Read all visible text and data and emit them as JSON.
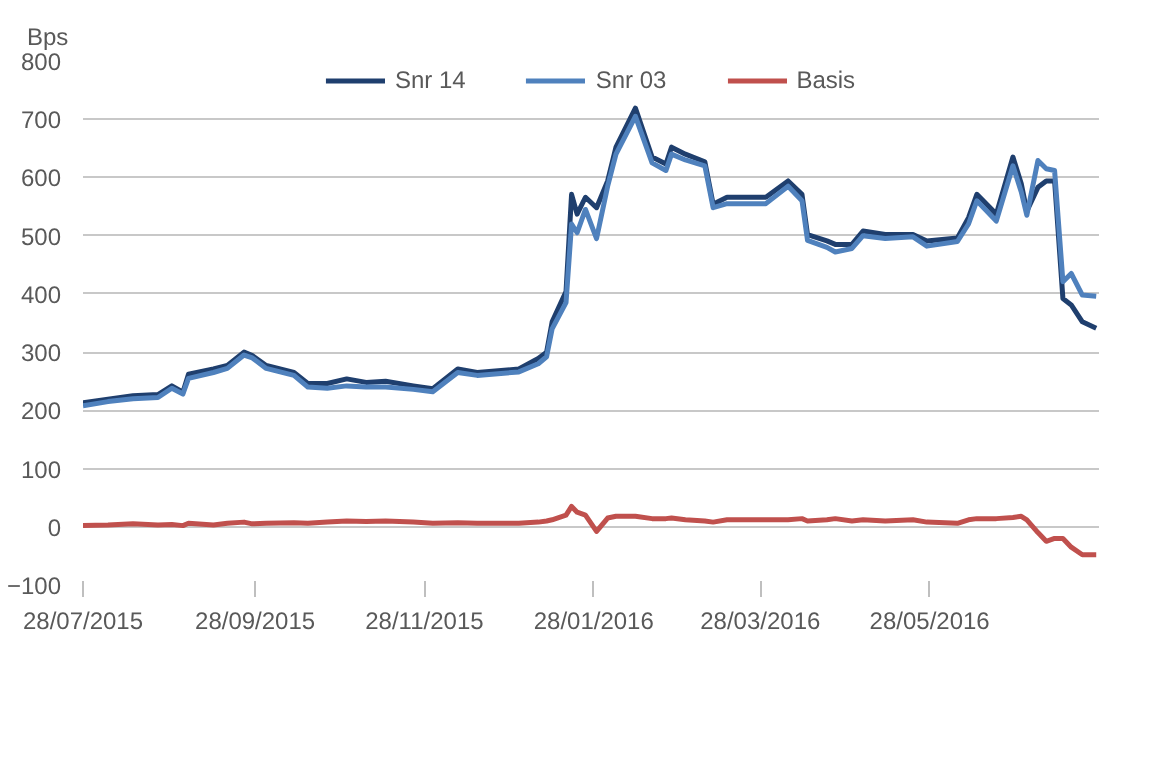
{
  "chart_data": {
    "type": "line",
    "ylabel": "Bps",
    "x": [
      "2015-07-28",
      "2015-08-06",
      "2015-08-15",
      "2015-08-24",
      "2015-08-29",
      "2015-09-02",
      "2015-09-04",
      "2015-09-13",
      "2015-09-18",
      "2015-09-24",
      "2015-09-27",
      "2015-10-02",
      "2015-10-12",
      "2015-10-17",
      "2015-10-24",
      "2015-10-31",
      "2015-11-07",
      "2015-11-14",
      "2015-11-24",
      "2015-12-01",
      "2015-12-10",
      "2015-12-17",
      "2016-01-01",
      "2016-01-08",
      "2016-01-11",
      "2016-01-13",
      "2016-01-18",
      "2016-01-20",
      "2016-01-22",
      "2016-01-25",
      "2016-01-29",
      "2016-02-02",
      "2016-02-05",
      "2016-02-12",
      "2016-02-18",
      "2016-02-23",
      "2016-02-25",
      "2016-03-01",
      "2016-03-08",
      "2016-03-11",
      "2016-03-16",
      "2016-03-30",
      "2016-04-07",
      "2016-04-12",
      "2016-04-14",
      "2016-04-21",
      "2016-04-24",
      "2016-04-30",
      "2016-05-04",
      "2016-05-12",
      "2016-05-22",
      "2016-05-27",
      "2016-06-07",
      "2016-06-11",
      "2016-06-14",
      "2016-06-21",
      "2016-06-27",
      "2016-06-30",
      "2016-07-02",
      "2016-07-06",
      "2016-07-09",
      "2016-07-12",
      "2016-07-15",
      "2016-07-18",
      "2016-07-22",
      "2016-07-27"
    ],
    "series": [
      {
        "name": "Snr 14",
        "color": "#1f3f6e",
        "values": [
          213,
          219,
          225,
          227,
          242,
          231,
          262,
          271,
          277,
          300,
          294,
          277,
          265,
          246,
          246,
          254,
          248,
          250,
          242,
          237,
          271,
          265,
          271,
          289,
          300,
          352,
          404,
          571,
          537,
          566,
          548,
          594,
          652,
          719,
          635,
          623,
          652,
          640,
          627,
          554,
          566,
          566,
          594,
          571,
          502,
          491,
          485,
          485,
          508,
          502,
          502,
          491,
          496,
          531,
          571,
          537,
          635,
          589,
          542,
          583,
          594,
          594,
          392,
          381,
          352,
          341
        ]
      },
      {
        "name": "Snr 03",
        "color": "#4f81bd",
        "values": [
          208,
          215,
          220,
          222,
          238,
          228,
          255,
          265,
          272,
          295,
          290,
          272,
          260,
          240,
          238,
          242,
          240,
          240,
          236,
          232,
          265,
          260,
          266,
          280,
          292,
          340,
          385,
          520,
          505,
          545,
          495,
          585,
          640,
          705,
          625,
          612,
          640,
          630,
          620,
          548,
          555,
          555,
          585,
          560,
          492,
          480,
          472,
          478,
          500,
          495,
          498,
          482,
          490,
          520,
          560,
          525,
          620,
          575,
          535,
          629,
          615,
          612,
          421,
          435,
          398,
          396
        ]
      },
      {
        "name": "Basis",
        "color": "#c0504d",
        "values": [
          2,
          3,
          5,
          3,
          4,
          2,
          6,
          3,
          6,
          8,
          5,
          6,
          7,
          6,
          8,
          10,
          9,
          10,
          8,
          6,
          7,
          6,
          6,
          8,
          10,
          12,
          20,
          35,
          25,
          20,
          -8,
          15,
          18,
          18,
          14,
          14,
          15,
          12,
          10,
          8,
          12,
          12,
          12,
          14,
          10,
          12,
          14,
          10,
          12,
          10,
          12,
          8,
          6,
          12,
          14,
          14,
          16,
          18,
          12,
          -10,
          -25,
          -20,
          -20,
          -35,
          -48,
          -48
        ]
      }
    ],
    "xlim": [
      "2015-07-28",
      "2016-07-28"
    ],
    "xticks": [
      {
        "value": "2015-07-28",
        "label": "28/07/2015"
      },
      {
        "value": "2015-09-28",
        "label": "28/09/2015"
      },
      {
        "value": "2015-11-28",
        "label": "28/11/2015"
      },
      {
        "value": "2016-01-28",
        "label": "28/01/2016"
      },
      {
        "value": "2016-03-28",
        "label": "28/03/2016"
      },
      {
        "value": "2016-05-28",
        "label": "28/05/2016"
      }
    ],
    "ylim": [
      -100,
      800
    ],
    "yticks": [
      -100,
      0,
      100,
      200,
      300,
      400,
      500,
      600,
      700,
      800
    ],
    "grid": "y",
    "legend": "top",
    "marker": "none",
    "line_style": "solid"
  }
}
